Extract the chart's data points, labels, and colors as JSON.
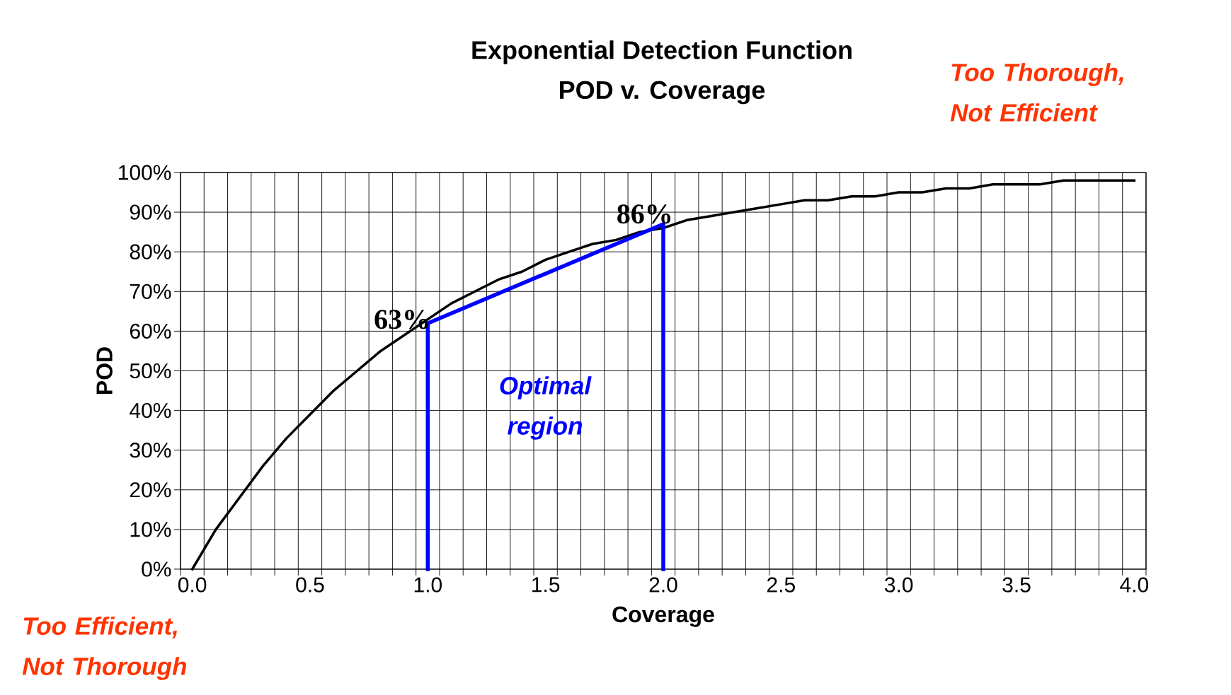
{
  "chart_data": {
    "type": "line",
    "title": "Exponential Detection Function",
    "subtitle": "POD v. Coverage",
    "xlabel": "Coverage",
    "ylabel": "POD",
    "categories": [
      "0.0",
      null,
      null,
      null,
      null,
      "0.5",
      null,
      null,
      null,
      null,
      "1.0",
      null,
      null,
      null,
      null,
      "1.5",
      null,
      null,
      null,
      null,
      "2.0",
      null,
      null,
      null,
      null,
      "2.5",
      null,
      null,
      null,
      null,
      "3.0",
      null,
      null,
      null,
      null,
      "3.5",
      null,
      null,
      null,
      null,
      "4.0"
    ],
    "ylim": [
      0,
      100
    ],
    "yticks": [
      {
        "value": 0,
        "label": "0%"
      },
      {
        "value": 10,
        "label": "10%"
      },
      {
        "value": 20,
        "label": "20%"
      },
      {
        "value": 30,
        "label": "30%"
      },
      {
        "value": 40,
        "label": "40%"
      },
      {
        "value": 50,
        "label": "50%"
      },
      {
        "value": 60,
        "label": "60%"
      },
      {
        "value": 70,
        "label": "70%"
      },
      {
        "value": 80,
        "label": "80%"
      },
      {
        "value": 90,
        "label": "90%"
      },
      {
        "value": 100,
        "label": "100%"
      }
    ],
    "grid": true,
    "series": [
      {
        "color": "#000000",
        "values": [
          0,
          10,
          18,
          26,
          33,
          39,
          45,
          50,
          55,
          59,
          63,
          67,
          70,
          73,
          75,
          78,
          80,
          82,
          83,
          85,
          86,
          88,
          89,
          90,
          91,
          92,
          93,
          93,
          94,
          94,
          95,
          95,
          96,
          96,
          97,
          97,
          97,
          98,
          98,
          98,
          98
        ]
      },
      {
        "color": "#0000ff",
        "x": [
          "1.0",
          "1.0",
          "2.0",
          "2.0"
        ],
        "values": [
          0,
          62,
          87,
          0
        ]
      }
    ],
    "annotations": [
      {
        "text": "63%",
        "x": "1.0",
        "y": 63
      },
      {
        "text": "86%",
        "x": "2.0",
        "y": 86
      },
      "*Optimal region*",
      "Too Thorough, Not Efficient",
      "Too Efficient, Not Thorough"
    ]
  }
}
